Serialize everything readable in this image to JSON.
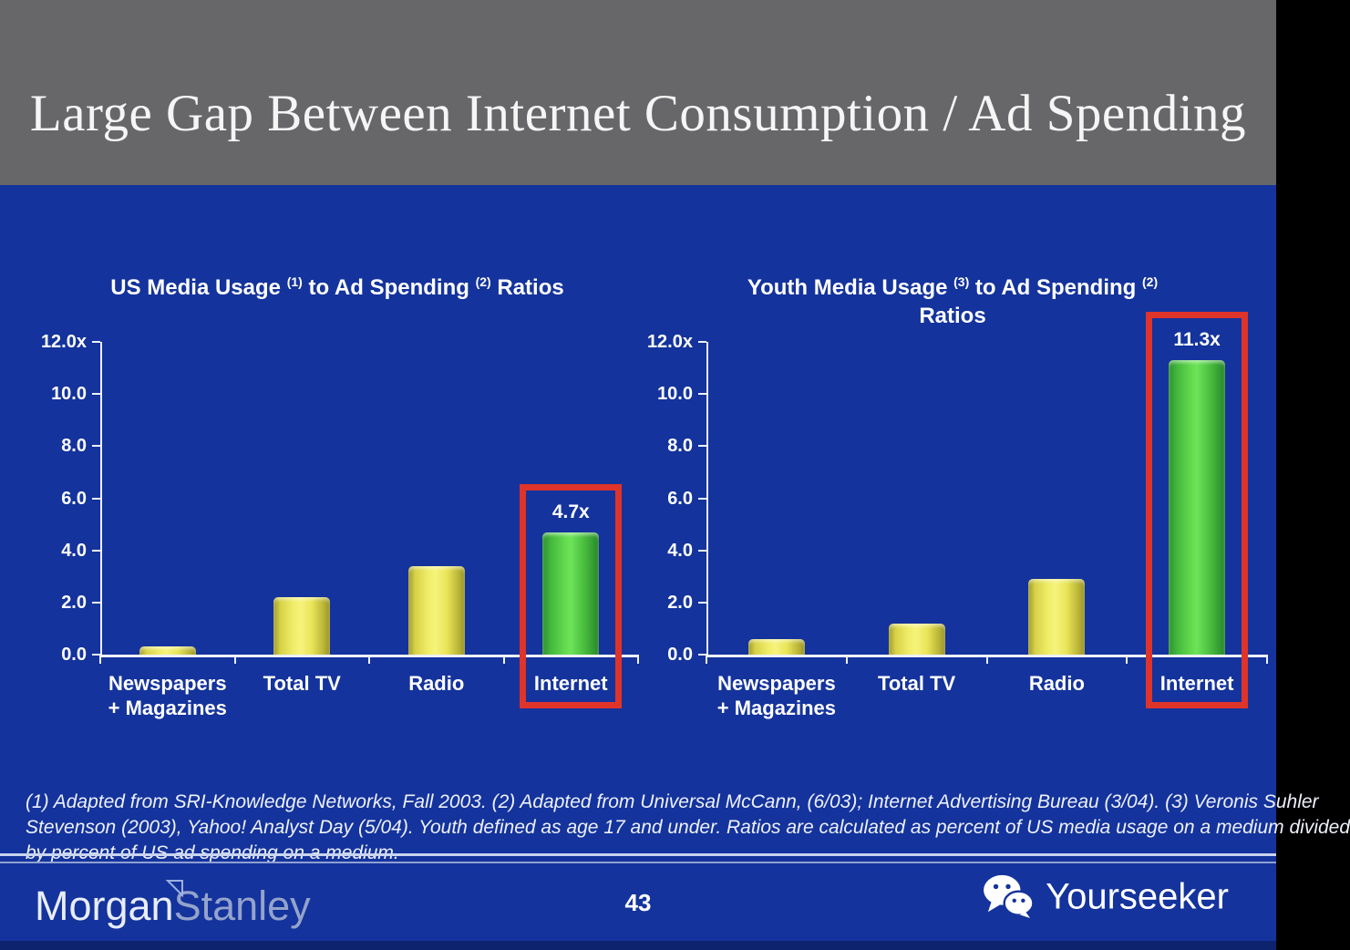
{
  "header": {
    "title": "Large Gap Between Internet Consumption / Ad Spending"
  },
  "colors": {
    "header_gray": "#67676a",
    "background_blue": "#14339c",
    "bar_yellow": "#ece860",
    "bar_green": "#55cc48",
    "highlight_red": "#df3429",
    "axis_white": "#eef2fc",
    "bottom_strip_navy": "#0d236e"
  },
  "chart_data": [
    {
      "type": "bar",
      "title_plain": "US Media Usage (1) to Ad Spending (2) Ratios",
      "title_segments": [
        {
          "text": "US Media Usage "
        },
        {
          "sup": "(1)"
        },
        {
          "text": " to Ad Spending "
        },
        {
          "sup": "(2)"
        },
        {
          "text": " Ratios"
        }
      ],
      "categories": [
        [
          "Newspapers",
          "+ Magazines"
        ],
        [
          "Total TV"
        ],
        [
          "Radio"
        ],
        [
          "Internet"
        ]
      ],
      "values": [
        0.3,
        2.2,
        3.4,
        4.7
      ],
      "bar_colors": [
        "yellow",
        "yellow",
        "yellow",
        "green"
      ],
      "xlabel": "",
      "ylabel": "",
      "ylim": [
        0,
        12
      ],
      "yticks": [
        {
          "value": 12,
          "label": "12.0x"
        },
        {
          "value": 10,
          "label": "10.0"
        },
        {
          "value": 8,
          "label": "8.0"
        },
        {
          "value": 6,
          "label": "6.0"
        },
        {
          "value": 4,
          "label": "4.0"
        },
        {
          "value": 2,
          "label": "2.0"
        },
        {
          "value": 0,
          "label": "0.0"
        }
      ],
      "grid": false,
      "legend": null,
      "highlight": {
        "index": 3,
        "label": "4.7x",
        "style": "red-box"
      }
    },
    {
      "type": "bar",
      "title_plain": "Youth Media Usage (3) to Ad Spending (2) Ratios",
      "title_segments": [
        {
          "text": "Youth Media Usage "
        },
        {
          "sup": "(3)"
        },
        {
          "text": " to Ad Spending "
        },
        {
          "sup": "(2)"
        },
        {
          "br": true
        },
        {
          "text": "Ratios"
        }
      ],
      "categories": [
        [
          "Newspapers",
          "+ Magazines"
        ],
        [
          "Total TV"
        ],
        [
          "Radio"
        ],
        [
          "Internet"
        ]
      ],
      "values": [
        0.6,
        1.2,
        2.9,
        11.3
      ],
      "bar_colors": [
        "yellow",
        "yellow",
        "yellow",
        "green"
      ],
      "xlabel": "",
      "ylabel": "",
      "ylim": [
        0,
        12
      ],
      "yticks": [
        {
          "value": 12,
          "label": "12.0x"
        },
        {
          "value": 10,
          "label": "10.0"
        },
        {
          "value": 8,
          "label": "8.0"
        },
        {
          "value": 6,
          "label": "6.0"
        },
        {
          "value": 4,
          "label": "4.0"
        },
        {
          "value": 2,
          "label": "2.0"
        },
        {
          "value": 0,
          "label": "0.0"
        }
      ],
      "grid": false,
      "legend": null,
      "highlight": {
        "index": 3,
        "label": "11.3x",
        "style": "red-box"
      }
    }
  ],
  "footnote": {
    "lines": [
      "(1) Adapted from SRI-Knowledge Networks, Fall 2003.  (2) Adapted from Universal McCann, (6/03); Internet Advertising Bureau (3/04). (3) Veronis Suhler",
      "Stevenson (2003), Yahoo! Analyst Day (5/04).  Youth defined as age 17 and under.  Ratios are calculated as percent of US media usage on a medium divided",
      "by percent of US ad spending on a medium."
    ]
  },
  "footer": {
    "morgan": "Morgan",
    "stanley": "Stanley",
    "page_number": "43",
    "yourseeker": "Yourseeker"
  }
}
